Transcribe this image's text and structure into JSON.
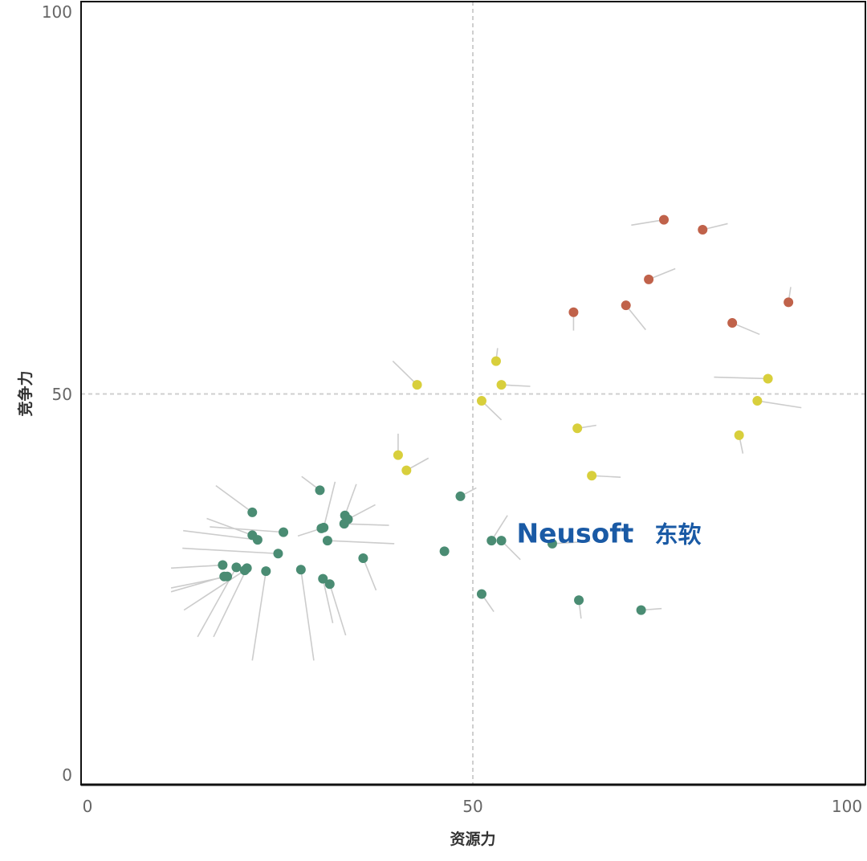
{
  "chart_data": {
    "type": "scatter",
    "xlabel": "资源力",
    "ylabel": "竞争力",
    "xlim": [
      0,
      100
    ],
    "ylim": [
      0,
      100
    ],
    "x_ticks": [
      "0",
      "50",
      "100"
    ],
    "y_ticks": [
      "0",
      "50",
      "100"
    ],
    "grid": false,
    "reference_lines": {
      "x": 50,
      "y": 50
    },
    "legend": "none",
    "colors": {
      "red": "#c0624a",
      "yellow": "#d8cf3c",
      "green": "#4a8c73",
      "leader": "#cccccc",
      "brand": "#1a5aa5"
    },
    "brand_logo": {
      "text_en": "Neusoft",
      "text_cn": "东软",
      "x": 56.5,
      "y": 31.8
    },
    "series": [
      {
        "color": "red",
        "points": [
          {
            "x": 81.0,
            "y": 71.5,
            "lx": 84.3,
            "ly": 72.3
          },
          {
            "x": 75.9,
            "y": 72.8,
            "lx": 71.6,
            "ly": 72.1
          },
          {
            "x": 73.9,
            "y": 65.0,
            "lx": 77.4,
            "ly": 66.4
          },
          {
            "x": 70.9,
            "y": 61.6,
            "lx": 73.5,
            "ly": 58.4
          },
          {
            "x": 64.0,
            "y": 60.7,
            "lx": 64.0,
            "ly": 58.3
          },
          {
            "x": 84.9,
            "y": 59.3,
            "lx": 88.5,
            "ly": 57.8
          },
          {
            "x": 92.3,
            "y": 62.0,
            "lx": 92.6,
            "ly": 64.0
          }
        ]
      },
      {
        "color": "yellow",
        "points": [
          {
            "x": 43.4,
            "y": 51.2,
            "lx": 40.2,
            "ly": 54.3
          },
          {
            "x": 53.8,
            "y": 54.3,
            "lx": 54.0,
            "ly": 56.0
          },
          {
            "x": 54.5,
            "y": 51.2,
            "lx": 58.3,
            "ly": 51.0
          },
          {
            "x": 51.9,
            "y": 49.1,
            "lx": 54.5,
            "ly": 46.6
          },
          {
            "x": 89.6,
            "y": 52.0,
            "lx": 82.5,
            "ly": 52.2
          },
          {
            "x": 88.2,
            "y": 49.1,
            "lx": 94.0,
            "ly": 48.2
          },
          {
            "x": 85.8,
            "y": 44.6,
            "lx": 86.3,
            "ly": 42.2
          },
          {
            "x": 64.5,
            "y": 45.5,
            "lx": 67.0,
            "ly": 45.9
          },
          {
            "x": 66.4,
            "y": 39.3,
            "lx": 70.2,
            "ly": 39.1
          },
          {
            "x": 40.9,
            "y": 42.0,
            "lx": 40.9,
            "ly": 44.8
          },
          {
            "x": 42.0,
            "y": 40.0,
            "lx": 44.9,
            "ly": 41.6
          }
        ]
      },
      {
        "color": "green",
        "points": [
          {
            "x": 30.6,
            "y": 37.4,
            "lx": 28.2,
            "ly": 39.2
          },
          {
            "x": 49.1,
            "y": 36.6,
            "lx": 51.2,
            "ly": 37.7
          },
          {
            "x": 21.7,
            "y": 34.5,
            "lx": 16.9,
            "ly": 38.0
          },
          {
            "x": 33.9,
            "y": 34.1,
            "lx": 35.4,
            "ly": 38.2
          },
          {
            "x": 34.3,
            "y": 33.6,
            "lx": 37.9,
            "ly": 35.5
          },
          {
            "x": 33.8,
            "y": 33.0,
            "lx": 39.7,
            "ly": 32.8
          },
          {
            "x": 31.1,
            "y": 32.5,
            "lx": 32.6,
            "ly": 38.5
          },
          {
            "x": 30.8,
            "y": 32.4,
            "lx": 27.7,
            "ly": 31.4
          },
          {
            "x": 25.8,
            "y": 31.9,
            "lx": 16.1,
            "ly": 32.6
          },
          {
            "x": 21.7,
            "y": 31.5,
            "lx": 15.7,
            "ly": 33.7
          },
          {
            "x": 22.4,
            "y": 30.9,
            "lx": 12.6,
            "ly": 32.1
          },
          {
            "x": 31.6,
            "y": 30.8,
            "lx": 40.4,
            "ly": 30.4
          },
          {
            "x": 53.2,
            "y": 30.8,
            "lx": 55.3,
            "ly": 34.1
          },
          {
            "x": 54.5,
            "y": 30.8,
            "lx": 57.0,
            "ly": 28.3
          },
          {
            "x": 61.2,
            "y": 30.4,
            "lx": 66.2,
            "ly": 30.7
          },
          {
            "x": 47.0,
            "y": 29.4,
            "lx": 47.0,
            "ly": 29.4
          },
          {
            "x": 25.1,
            "y": 29.1,
            "lx": 12.5,
            "ly": 29.8
          },
          {
            "x": 36.3,
            "y": 28.5,
            "lx": 38.0,
            "ly": 24.3
          },
          {
            "x": 17.8,
            "y": 27.6,
            "lx": 11.0,
            "ly": 27.2
          },
          {
            "x": 19.6,
            "y": 27.3,
            "lx": 14.5,
            "ly": 18.2
          },
          {
            "x": 21.0,
            "y": 27.2,
            "lx": 16.6,
            "ly": 18.2
          },
          {
            "x": 20.7,
            "y": 26.9,
            "lx": 12.7,
            "ly": 21.7
          },
          {
            "x": 23.5,
            "y": 26.8,
            "lx": 21.7,
            "ly": 15.1
          },
          {
            "x": 28.1,
            "y": 27.0,
            "lx": 29.8,
            "ly": 15.1
          },
          {
            "x": 18.4,
            "y": 26.1,
            "lx": 11.0,
            "ly": 24.6
          },
          {
            "x": 18.0,
            "y": 26.1,
            "lx": 11.0,
            "ly": 24.1
          },
          {
            "x": 31.0,
            "y": 25.8,
            "lx": 32.3,
            "ly": 20.0
          },
          {
            "x": 31.9,
            "y": 25.1,
            "lx": 34.0,
            "ly": 18.4
          },
          {
            "x": 51.9,
            "y": 23.8,
            "lx": 53.5,
            "ly": 21.5
          },
          {
            "x": 64.7,
            "y": 23.0,
            "lx": 65.0,
            "ly": 20.6
          },
          {
            "x": 72.9,
            "y": 21.7,
            "lx": 75.6,
            "ly": 21.9
          }
        ]
      }
    ]
  }
}
